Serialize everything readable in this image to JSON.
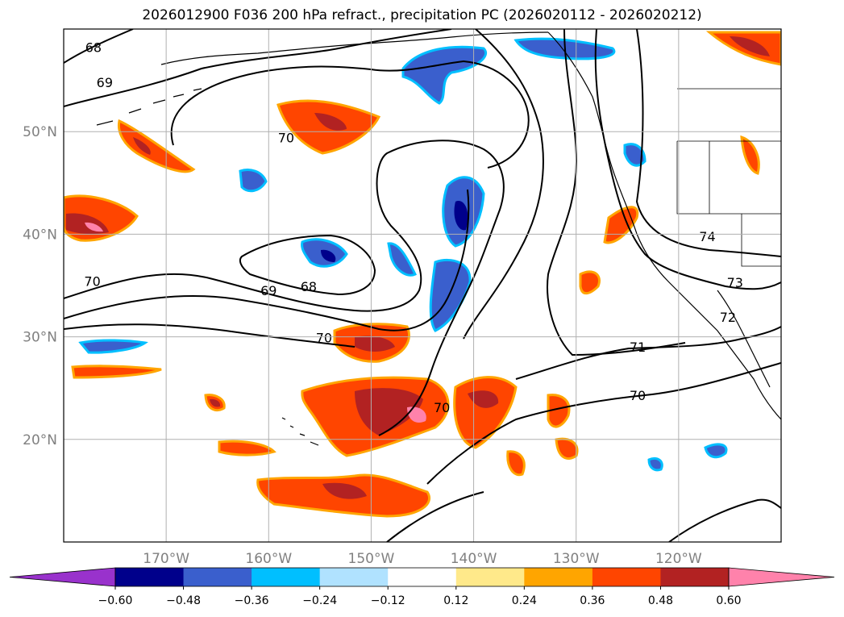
{
  "title": "2026012900 F036 200 hPa refract., precipitation PC (2026020112 - 2026020212)",
  "axes": {
    "x_ticks": [
      {
        "label": "170°W",
        "lon": -170
      },
      {
        "label": "160°W",
        "lon": -160
      },
      {
        "label": "150°W",
        "lon": -150
      },
      {
        "label": "140°W",
        "lon": -140
      },
      {
        "label": "130°W",
        "lon": -130
      },
      {
        "label": "120°W",
        "lon": -120
      }
    ],
    "y_ticks": [
      {
        "label": "50°N",
        "lat": 50
      },
      {
        "label": "40°N",
        "lat": 40
      },
      {
        "label": "30°N",
        "lat": 30
      },
      {
        "label": "20°N",
        "lat": 20
      }
    ],
    "lon_range": [
      -180,
      -110
    ],
    "lat_range": [
      10,
      60
    ],
    "grid": true,
    "tick_color": "#808080"
  },
  "contour_labels": [
    {
      "text": "68",
      "lon": -177.1,
      "lat": 57.9
    },
    {
      "text": "69",
      "lon": -176.0,
      "lat": 54.5
    },
    {
      "text": "70",
      "lon": -158.3,
      "lat": 49.1
    },
    {
      "text": "70",
      "lon": -177.2,
      "lat": 35.1
    },
    {
      "text": "69",
      "lon": -160.0,
      "lat": 34.2
    },
    {
      "text": "68",
      "lon": -156.1,
      "lat": 34.6
    },
    {
      "text": "70",
      "lon": -154.6,
      "lat": 29.6
    },
    {
      "text": "70",
      "lon": -143.1,
      "lat": 22.8
    },
    {
      "text": "71",
      "lon": -124.0,
      "lat": 28.7
    },
    {
      "text": "70",
      "lon": -124.0,
      "lat": 24.0
    },
    {
      "text": "72",
      "lon": -115.2,
      "lat": 31.6
    },
    {
      "text": "73",
      "lon": -114.5,
      "lat": 35.0
    },
    {
      "text": "74",
      "lon": -117.2,
      "lat": 39.5
    }
  ],
  "colorbar": {
    "levels": [
      -0.72,
      -0.6,
      -0.48,
      -0.36,
      -0.24,
      -0.12,
      0.12,
      0.24,
      0.36,
      0.48,
      0.6,
      0.72
    ],
    "colors": [
      "#9932cc",
      "#00008b",
      "#3a5fcd",
      "#00bfff",
      "#b0e2ff",
      "#ffffff",
      "#ffe98a",
      "#ffa500",
      "#ff4500",
      "#b22222",
      "#ff82ab"
    ],
    "tick_labels": [
      "−0.60",
      "−0.48",
      "−0.36",
      "−0.24",
      "−0.12",
      "0.12",
      "0.24",
      "0.36",
      "0.48",
      "0.60"
    ],
    "extend": "both"
  },
  "contour_line_color": "#000000",
  "coastline_color": "#000000"
}
